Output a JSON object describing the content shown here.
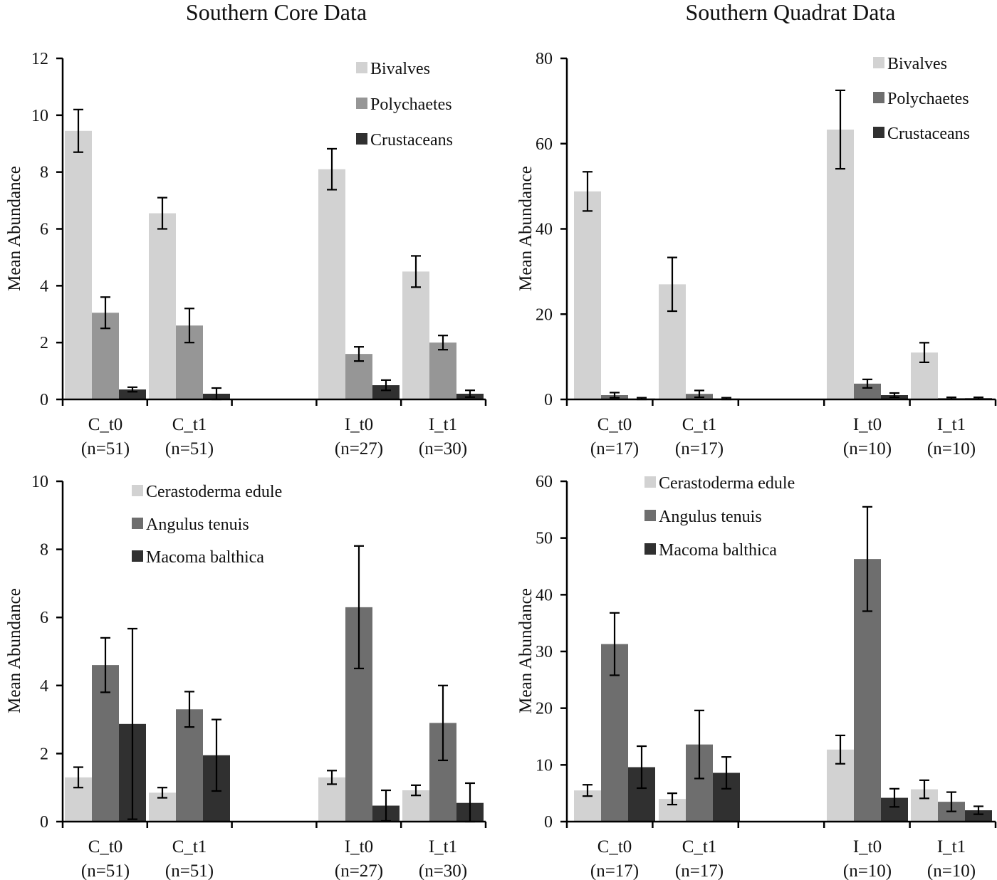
{
  "chart_data": [
    {
      "type": "bar",
      "title": "Southern Core Data",
      "ylabel": "Mean Abundance",
      "ylim": [
        0,
        12
      ],
      "yticks": [
        0,
        2,
        4,
        6,
        8,
        10,
        12
      ],
      "categories": [
        "C_t0",
        "C_t1",
        "I_t0",
        "I_t1"
      ],
      "category_n": [
        "(n=51)",
        "(n=51)",
        "(n=27)",
        "(n=30)"
      ],
      "series": [
        {
          "name": "Bivalves",
          "color": "#d2d2d2",
          "values": [
            9.45,
            6.55,
            8.1,
            4.5
          ],
          "errors": [
            0.75,
            0.55,
            0.72,
            0.55
          ]
        },
        {
          "name": "Polychaetes",
          "color": "#969696",
          "values": [
            3.05,
            2.6,
            1.6,
            2.0
          ],
          "errors": [
            0.55,
            0.6,
            0.25,
            0.25
          ]
        },
        {
          "name": "Crustaceans",
          "color": "#303030",
          "values": [
            0.35,
            0.2,
            0.5,
            0.2
          ],
          "errors": [
            0.08,
            0.2,
            0.18,
            0.12
          ]
        }
      ],
      "legend_position": "top-right"
    },
    {
      "type": "bar",
      "title": "Southern Quadrat Data",
      "ylabel": "Mean Abundance",
      "ylim": [
        0,
        80
      ],
      "yticks": [
        0,
        20,
        40,
        60,
        80
      ],
      "categories": [
        "C_t0",
        "C_t1",
        "I_t0",
        "I_t1"
      ],
      "category_n": [
        "(n=17)",
        "(n=17)",
        "(n=10)",
        "(n=10)"
      ],
      "series": [
        {
          "name": "Bivalves",
          "color": "#d2d2d2",
          "values": [
            48.8,
            27.0,
            63.3,
            11.0
          ],
          "errors": [
            4.6,
            6.3,
            9.2,
            2.3
          ]
        },
        {
          "name": "Polychaetes",
          "color": "#6e6e6e",
          "values": [
            1.0,
            1.3,
            3.7,
            0.3
          ],
          "errors": [
            0.6,
            0.8,
            1.0,
            0.2
          ]
        },
        {
          "name": "Crustaceans",
          "color": "#303030",
          "values": [
            0.2,
            0.2,
            1.0,
            0.3
          ],
          "errors": [
            0.2,
            0.2,
            0.5,
            0.2
          ]
        }
      ],
      "legend_position": "top-right"
    },
    {
      "type": "bar",
      "title": "",
      "ylabel": "Mean Abundance",
      "ylim": [
        0,
        10
      ],
      "yticks": [
        0,
        2,
        4,
        6,
        8,
        10
      ],
      "categories": [
        "C_t0",
        "C_t1",
        "I_t0",
        "I_t1"
      ],
      "category_n": [
        "(n=51)",
        "(n=51)",
        "(n=27)",
        "(n=30)"
      ],
      "series": [
        {
          "name": "Cerastoderma edule",
          "color": "#d2d2d2",
          "values": [
            1.3,
            0.85,
            1.3,
            0.92
          ],
          "errors": [
            0.3,
            0.15,
            0.2,
            0.15
          ]
        },
        {
          "name": "Angulus tenuis",
          "color": "#6e6e6e",
          "values": [
            4.6,
            3.3,
            6.3,
            2.9
          ],
          "errors": [
            0.8,
            0.52,
            1.8,
            1.1
          ]
        },
        {
          "name": "Macoma balthica",
          "color": "#303030",
          "values": [
            2.87,
            1.95,
            0.47,
            0.55
          ],
          "errors": [
            2.8,
            1.05,
            0.45,
            0.58
          ]
        }
      ],
      "legend_position": "top-center"
    },
    {
      "type": "bar",
      "title": "",
      "ylabel": "Mean Abundance",
      "ylim": [
        0,
        60
      ],
      "yticks": [
        0,
        10,
        20,
        30,
        40,
        50,
        60
      ],
      "categories": [
        "C_t0",
        "C_t1",
        "I_t0",
        "I_t1"
      ],
      "category_n": [
        "(n=17)",
        "(n=17)",
        "(n=10)",
        "(n=10)"
      ],
      "series": [
        {
          "name": "Cerastoderma edule",
          "color": "#d2d2d2",
          "values": [
            5.5,
            4.0,
            12.7,
            5.7
          ],
          "errors": [
            1.0,
            1.0,
            2.5,
            1.6
          ]
        },
        {
          "name": "Angulus tenuis",
          "color": "#6e6e6e",
          "values": [
            31.3,
            13.6,
            46.3,
            3.5
          ],
          "errors": [
            5.5,
            6.0,
            9.2,
            1.7
          ]
        },
        {
          "name": "Macoma balthica",
          "color": "#303030",
          "values": [
            9.6,
            8.6,
            4.2,
            2.0
          ],
          "errors": [
            3.7,
            2.8,
            1.6,
            0.7
          ]
        }
      ],
      "legend_position": "top-center"
    }
  ]
}
